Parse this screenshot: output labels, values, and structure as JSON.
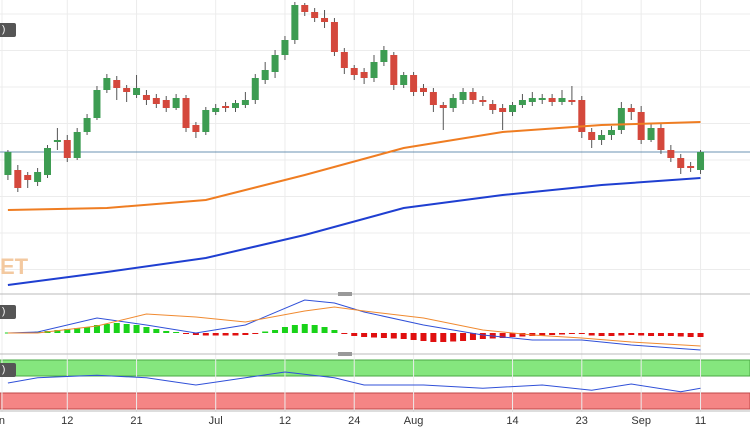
{
  "chart_data": [
    {
      "type": "candlestick",
      "open": [
        125,
        130,
        125,
        118,
        125,
        158,
        160,
        142,
        168,
        182,
        210,
        220,
        212,
        205,
        205,
        202,
        200,
        192,
        202,
        175,
        168,
        188,
        194,
        192,
        195,
        200,
        220,
        228,
        245,
        260,
        295,
        288,
        282,
        278,
        248,
        232,
        228,
        222,
        238,
        245,
        215,
        225,
        212,
        208,
        195,
        192,
        200,
        208,
        200,
        196,
        192,
        188,
        195,
        198,
        200,
        202,
        198,
        200,
        200,
        168,
        160,
        165,
        170,
        192,
        188,
        160,
        172,
        150,
        142,
        134,
        130
      ],
      "high": [
        150,
        135,
        128,
        132,
        155,
        172,
        165,
        172,
        186,
        214,
        226,
        224,
        215,
        225,
        210,
        206,
        204,
        206,
        205,
        178,
        193,
        196,
        198,
        200,
        208,
        226,
        238,
        250,
        264,
        298,
        297,
        292,
        290,
        282,
        252,
        235,
        232,
        245,
        254,
        248,
        228,
        228,
        216,
        212,
        198,
        206,
        212,
        212,
        204,
        200,
        196,
        198,
        206,
        208,
        206,
        206,
        210,
        214,
        204,
        172,
        170,
        174,
        198,
        196,
        194,
        176,
        176,
        155,
        146,
        138,
        150
      ],
      "low": [
        120,
        108,
        112,
        114,
        122,
        150,
        138,
        140,
        165,
        180,
        207,
        200,
        198,
        202,
        195,
        192,
        188,
        190,
        168,
        162,
        165,
        185,
        188,
        188,
        192,
        196,
        216,
        222,
        240,
        256,
        284,
        278,
        272,
        244,
        226,
        220,
        216,
        218,
        234,
        210,
        212,
        204,
        204,
        188,
        170,
        188,
        196,
        196,
        194,
        186,
        170,
        184,
        192,
        194,
        196,
        194,
        195,
        195,
        162,
        152,
        155,
        160,
        166,
        180,
        156,
        158,
        146,
        138,
        126,
        128,
        126
      ],
      "close": [
        148,
        112,
        120,
        128,
        152,
        160,
        142,
        168,
        182,
        210,
        222,
        212,
        208,
        212,
        200,
        196,
        192,
        202,
        172,
        168,
        190,
        192,
        192,
        197,
        200,
        222,
        230,
        245,
        260,
        295,
        288,
        282,
        278,
        248,
        232,
        225,
        222,
        238,
        250,
        215,
        225,
        208,
        208,
        195,
        192,
        202,
        208,
        200,
        198,
        190,
        188,
        195,
        200,
        202,
        202,
        198,
        202,
        198,
        168,
        160,
        165,
        170,
        192,
        188,
        160,
        172,
        150,
        142,
        132,
        132,
        148
      ],
      "up_color": "#3d9c52",
      "down_color": "#d4483c",
      "ylim": [
        8,
        300
      ],
      "xlim": [
        -0.8,
        75
      ],
      "xticks": [
        {
          "value": -0.6,
          "label": "n"
        },
        {
          "value": 6,
          "label": "12"
        },
        {
          "value": 13,
          "label": "21"
        },
        {
          "value": 21,
          "label": "Jul"
        },
        {
          "value": 28,
          "label": "12"
        },
        {
          "value": 35,
          "label": "24"
        },
        {
          "value": 41,
          "label": "Aug"
        },
        {
          "value": 51,
          "label": "14"
        },
        {
          "value": 58,
          "label": "23"
        },
        {
          "value": 64,
          "label": "Sep"
        },
        {
          "value": 70,
          "label": "11"
        }
      ],
      "series": [
        {
          "color": "#ef7d22",
          "x": [
            0,
            10,
            20,
            30,
            40,
            50,
            60,
            70
          ],
          "values": [
            90,
            92,
            100,
            125,
            152,
            168,
            175,
            178
          ]
        },
        {
          "color": "#1f3fd1",
          "x": [
            0,
            10,
            20,
            30,
            40,
            50,
            60,
            70
          ],
          "values": [
            15,
            28,
            42,
            65,
            92,
            105,
            115,
            122
          ]
        }
      ],
      "annotation": "ET",
      "pane_label": ")"
    },
    {
      "type": "macd",
      "ylim": [
        -19,
        33
      ],
      "histogram": [
        0.5,
        0.5,
        1,
        1.5,
        2,
        3,
        4,
        5,
        6,
        8,
        9,
        10,
        9,
        8,
        6,
        4,
        2,
        1,
        -1,
        -2,
        -2.5,
        -2.5,
        -2.5,
        -2.5,
        -2,
        -0.5,
        1.5,
        3,
        6,
        8,
        9,
        8,
        6,
        3,
        -1,
        -3,
        -4,
        -4.5,
        -5,
        -5.5,
        -6,
        -7,
        -8,
        -9,
        -9,
        -8.5,
        -8,
        -7,
        -6,
        -5.5,
        -5,
        -4,
        -3.5,
        -3,
        -2.5,
        -2,
        -1.5,
        -0.5,
        -1,
        -2.5,
        -3,
        -3,
        -2.5,
        -2,
        -2.5,
        -3,
        -3,
        -3,
        -3.5,
        -4,
        -4
      ],
      "up_color": "#19d219",
      "down_color": "#e01010",
      "series": [
        {
          "color": "#3050d8",
          "x": [
            0,
            3,
            9,
            14,
            19,
            24,
            30,
            33,
            36,
            42,
            48,
            53,
            58,
            63,
            70
          ],
          "values": [
            0,
            1,
            15,
            8,
            0,
            8,
            33,
            30,
            21,
            8,
            -2,
            -7,
            -7,
            -12,
            -17
          ]
        },
        {
          "color": "#f08a30",
          "x": [
            0,
            3,
            9,
            14,
            19,
            24,
            30,
            33,
            36,
            42,
            48,
            53,
            58,
            63,
            70
          ],
          "values": [
            0,
            0,
            7,
            19,
            16,
            11,
            22,
            26,
            22,
            15,
            3,
            -2,
            -5,
            -9,
            -13
          ]
        }
      ],
      "pane_label": ")"
    },
    {
      "type": "rsi",
      "ylim": [
        0,
        100
      ],
      "series": [
        {
          "color": "#3050d8",
          "x": [
            0,
            3,
            9,
            14,
            19,
            24,
            28,
            33,
            36,
            42,
            48,
            54,
            59,
            63,
            68,
            70
          ],
          "values": [
            52,
            62,
            67,
            62,
            48,
            62,
            73,
            62,
            48,
            48,
            42,
            48,
            38,
            50,
            35,
            42
          ]
        }
      ],
      "pane_label": ")"
    }
  ]
}
